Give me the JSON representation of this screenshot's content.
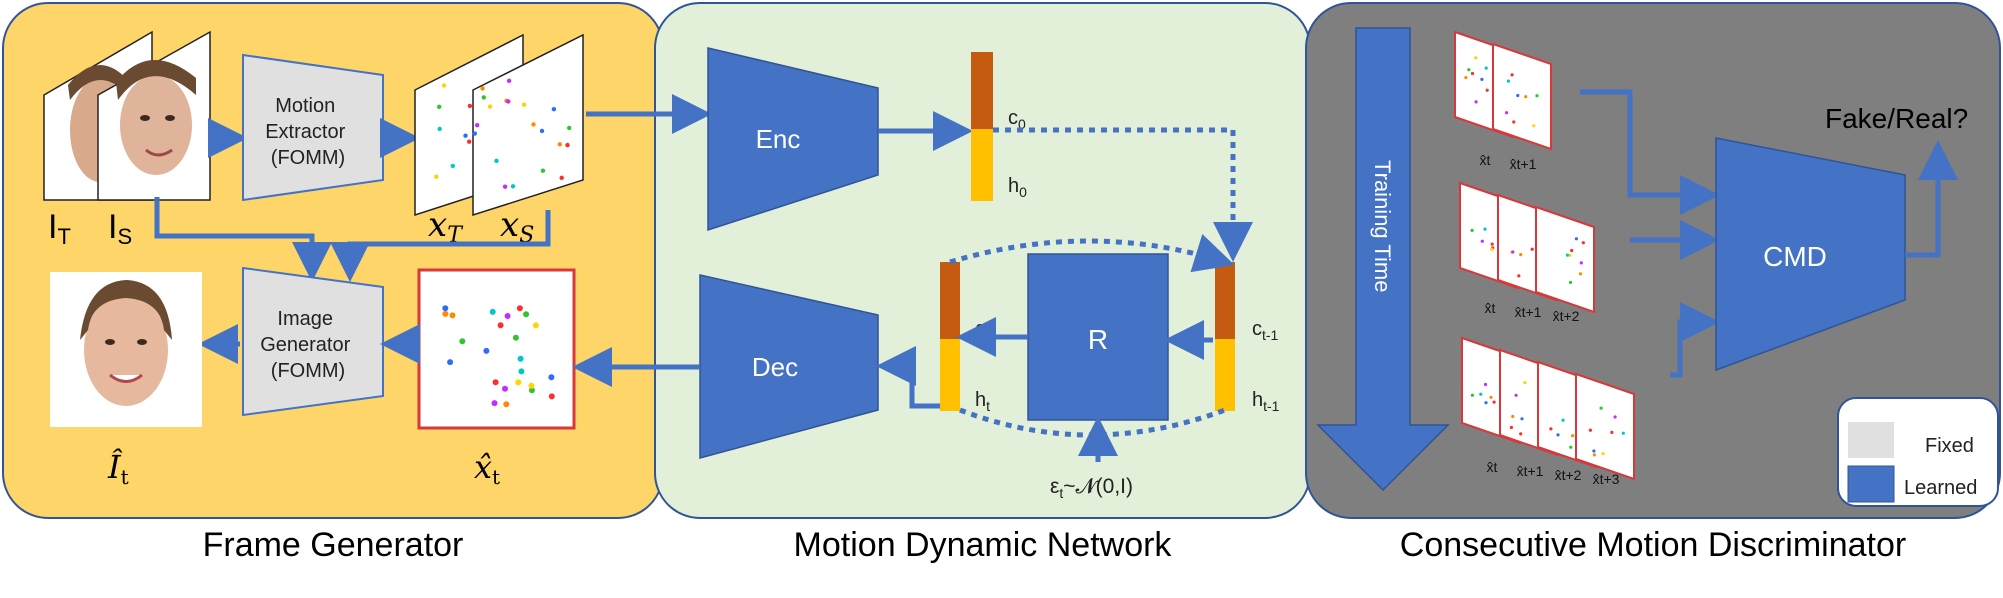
{
  "panels": {
    "frame_generator": {
      "caption": "Frame Generator",
      "motion_extractor": [
        "Motion",
        "Extractor",
        "(FOMM)"
      ],
      "image_generator": [
        "Image",
        "Generator",
        "(FOMM)"
      ],
      "label_it_base": "I",
      "label_it_sub": "T",
      "label_is_base": "I",
      "label_is_sub": "S",
      "label_xt_base": "x",
      "label_xt_sub": "T",
      "label_xs_base": "x",
      "label_xs_sub": "S",
      "label_out_base": "Î",
      "label_out_sub": "t",
      "label_xhat_base": "x̂",
      "label_xhat_sub": "t"
    },
    "motion_dynamic": {
      "caption": "Motion Dynamic Network",
      "enc": "Enc",
      "dec": "Dec",
      "r": "R",
      "c0": "c",
      "c0_sub": "0",
      "h0": "h",
      "h0_sub": "0",
      "ct": "c",
      "ct_sub": "t",
      "ht": "h",
      "ht_sub": "t",
      "ctm1": "c",
      "ctm1_sub": "t-1",
      "htm1": "h",
      "htm1_sub": "t-1",
      "noise": "ε",
      "noise_sub": "t",
      "noise_rest": "~𝓝(0,I)"
    },
    "discriminator": {
      "caption": "Consecutive Motion Discriminator",
      "training_time": "Training Time",
      "cmd": "CMD",
      "fake_real": "Fake/Real?",
      "row1": [
        "x̂t",
        "x̂t+1"
      ],
      "row2": [
        "x̂t",
        "x̂t+1",
        "x̂t+2"
      ],
      "row3": [
        "x̂t",
        "x̂t+1",
        "x̂t+2",
        "x̂t+3"
      ]
    }
  },
  "legend": {
    "fixed": "Fixed",
    "learned": "Learned"
  },
  "colors": {
    "frame_bg": "#fdd569",
    "motion_bg": "#e2efd9",
    "disc_bg": "#7f7f7f",
    "blue": "#4472c4",
    "grey_box": "#d9d9d9",
    "cell_orange": "#c55a11",
    "cell_yellow": "#ffc000"
  }
}
